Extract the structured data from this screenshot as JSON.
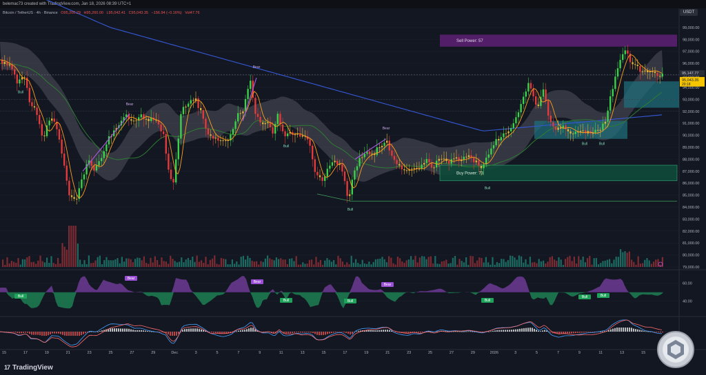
{
  "header": {
    "text": "belemac73 created with TradingView.com, Jan 18, 2026 08:39 UTC+1"
  },
  "symbol": {
    "name": "Bitcoin / TetherUS · 4h · Binance",
    "open": "O95,200.29",
    "high": "H95,260.00",
    "low": "L95,042.41",
    "close": "C95,043.35",
    "change": "−156.94 (−0.16%)",
    "volume": "Vol47.76"
  },
  "currency": "USDT",
  "logo": {
    "mark": "17",
    "text": "TradingView"
  },
  "colors": {
    "background": "#131722",
    "bull": "#26a69a",
    "bear": "#ef5350",
    "sell_zone": "#5b1f70",
    "buy_zone": "#0f4a3a",
    "ema_long": "#3355cc",
    "ema_mid": "#2e7d32",
    "cloud": "#5d606b"
  },
  "chart_data": [
    {
      "type": "line",
      "name": "price",
      "ylim": [
        79000,
        99800
      ],
      "y_ticks": [
        "99,000.00",
        "98,000.00",
        "97,000.00",
        "96,000.00",
        "95,000.00",
        "94,000.00",
        "93,000.00",
        "92,000.00",
        "91,000.00",
        "90,000.00",
        "89,000.00",
        "88,000.00",
        "87,000.00",
        "86,000.00",
        "85,000.00",
        "84,000.00",
        "83,000.00",
        "82,000.00",
        "81,000.00",
        "80,000.00",
        "79,000.00"
      ],
      "y_tick_values": [
        99000,
        98000,
        97000,
        96000,
        95000,
        94000,
        93000,
        92000,
        91000,
        90000,
        89000,
        88000,
        87000,
        86000,
        85000,
        84000,
        83000,
        82000,
        81000,
        80000,
        79000
      ],
      "x_labels": [
        "15",
        "17",
        "19",
        "21",
        "23",
        "25",
        "27",
        "29",
        "Dec",
        "3",
        "5",
        "7",
        "9",
        "11",
        "13",
        "15",
        "17",
        "19",
        "21",
        "23",
        "25",
        "27",
        "29",
        "2026",
        "3",
        "5",
        "7",
        "9",
        "11",
        "13",
        "15",
        "17"
      ],
      "price_path": [
        [
          0,
          96300
        ],
        [
          20,
          95600
        ],
        [
          28,
          94400
        ],
        [
          38,
          95000
        ],
        [
          45,
          92700
        ],
        [
          55,
          92000
        ],
        [
          65,
          89600
        ],
        [
          75,
          91500
        ],
        [
          85,
          90600
        ],
        [
          95,
          87500
        ],
        [
          103,
          85000
        ],
        [
          112,
          84400
        ],
        [
          120,
          86000
        ],
        [
          130,
          88000
        ],
        [
          140,
          87000
        ],
        [
          150,
          88200
        ],
        [
          160,
          89800
        ],
        [
          172,
          90700
        ],
        [
          185,
          91800
        ],
        [
          195,
          91000
        ],
        [
          205,
          91700
        ],
        [
          215,
          91400
        ],
        [
          230,
          91100
        ],
        [
          240,
          90000
        ],
        [
          248,
          86500
        ],
        [
          253,
          85800
        ],
        [
          258,
          88000
        ],
        [
          265,
          92000
        ],
        [
          275,
          92800
        ],
        [
          285,
          93100
        ],
        [
          295,
          91800
        ],
        [
          305,
          90000
        ],
        [
          315,
          89800
        ],
        [
          325,
          89500
        ],
        [
          335,
          89800
        ],
        [
          345,
          91500
        ],
        [
          355,
          92200
        ],
        [
          365,
          94700
        ],
        [
          372,
          92000
        ],
        [
          380,
          91000
        ],
        [
          390,
          91200
        ],
        [
          398,
          90100
        ],
        [
          405,
          92000
        ],
        [
          412,
          90200
        ],
        [
          420,
          90000
        ],
        [
          430,
          90300
        ],
        [
          438,
          89700
        ],
        [
          445,
          89900
        ],
        [
          452,
          89300
        ],
        [
          460,
          86800
        ],
        [
          470,
          86200
        ],
        [
          478,
          87200
        ],
        [
          488,
          87800
        ],
        [
          496,
          87600
        ],
        [
          502,
          86200
        ],
        [
          508,
          84500
        ],
        [
          515,
          87000
        ],
        [
          525,
          88000
        ],
        [
          535,
          88500
        ],
        [
          545,
          88500
        ],
        [
          555,
          89200
        ],
        [
          563,
          89500
        ],
        [
          570,
          88200
        ],
        [
          578,
          87600
        ],
        [
          585,
          87200
        ],
        [
          592,
          86900
        ],
        [
          600,
          87400
        ],
        [
          610,
          87000
        ],
        [
          620,
          88000
        ],
        [
          630,
          87300
        ],
        [
          640,
          88200
        ],
        [
          650,
          87700
        ],
        [
          660,
          88000
        ],
        [
          670,
          87900
        ],
        [
          680,
          88300
        ],
        [
          690,
          87900
        ],
        [
          700,
          87400
        ],
        [
          710,
          88200
        ],
        [
          720,
          89400
        ],
        [
          730,
          89900
        ],
        [
          740,
          90300
        ],
        [
          750,
          91300
        ],
        [
          760,
          93000
        ],
        [
          770,
          94500
        ],
        [
          775,
          93500
        ],
        [
          782,
          92000
        ],
        [
          790,
          93800
        ],
        [
          800,
          91200
        ],
        [
          810,
          90400
        ],
        [
          820,
          90800
        ],
        [
          830,
          90300
        ],
        [
          840,
          90200
        ],
        [
          850,
          90300
        ],
        [
          860,
          90100
        ],
        [
          870,
          90400
        ],
        [
          880,
          91000
        ],
        [
          887,
          93000
        ],
        [
          895,
          94800
        ],
        [
          902,
          96200
        ],
        [
          910,
          97200
        ],
        [
          918,
          96000
        ],
        [
          926,
          95800
        ],
        [
          935,
          95200
        ],
        [
          945,
          95500
        ],
        [
          955,
          95100
        ],
        [
          962,
          95040
        ]
      ],
      "reference_lines": [
        95043.35,
        93000,
        92000,
        85000
      ],
      "last_price_label": "95,043.35",
      "countdown_label": "20:18",
      "last_close_label": "95,147.77",
      "annotations": {
        "sell_power": "Sell Power: 57",
        "buy_power": "Buy Power: 73",
        "bull": "Bull",
        "bear": "Bear"
      }
    },
    {
      "type": "bar",
      "name": "volume"
    },
    {
      "type": "area",
      "name": "oscillator",
      "y_ticks": [
        "60.00",
        "40.00"
      ],
      "y_tick_values": [
        60,
        40
      ],
      "labels": {
        "bull": "Bull",
        "bear": "Bear"
      }
    },
    {
      "type": "heatmap",
      "name": "macd histogram"
    }
  ]
}
